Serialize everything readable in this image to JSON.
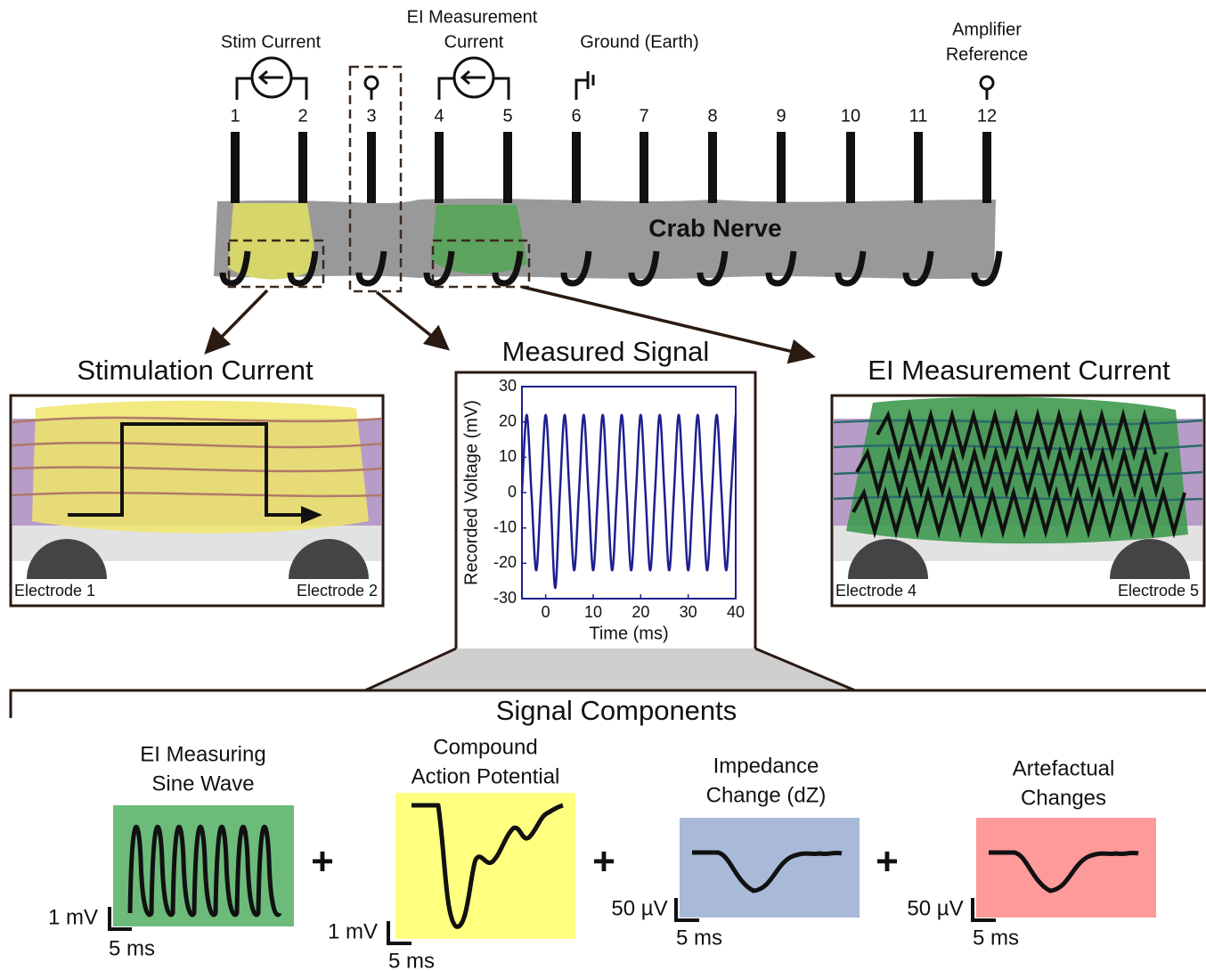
{
  "setup": {
    "source_labels": {
      "stim": "Stim Current",
      "ei": [
        "EI Measurement",
        "Current"
      ],
      "ground": "Ground (Earth)",
      "reference": [
        "Amplifier",
        "Reference"
      ]
    },
    "electrodes": [
      1,
      2,
      3,
      4,
      5,
      6,
      7,
      8,
      9,
      10,
      11,
      12
    ],
    "nerve_label": "Crab Nerve"
  },
  "panels": {
    "stimulation": {
      "title": "Stimulation Current",
      "left_electrode": "Electrode 1",
      "right_electrode": "Electrode 2"
    },
    "ei_measurement": {
      "title": "EI Measurement Current",
      "left_electrode": "Electrode 4",
      "right_electrode": "Electrode 5"
    }
  },
  "measured_signal": {
    "type": "line",
    "title": "Measured Signal",
    "x_label": "Time (ms)",
    "y_label": "Recorded Voltage (mV)",
    "color": "#1f1f8f",
    "xlim": [
      -5,
      40
    ],
    "ylim": [
      -30,
      30
    ],
    "xticks": [
      0,
      10,
      20,
      30,
      40
    ],
    "yticks": [
      -30,
      -20,
      -10,
      0,
      10,
      20,
      30
    ],
    "x": [
      -5,
      -4,
      -3,
      -2,
      -1,
      0,
      1,
      2,
      3,
      4,
      5,
      6,
      7,
      8,
      9,
      10,
      11,
      12,
      13,
      14,
      15,
      16,
      17,
      18,
      19,
      20,
      21,
      22,
      23,
      24,
      25,
      26,
      27,
      28,
      29,
      30,
      31,
      32,
      33,
      34,
      35,
      36,
      37,
      38,
      39,
      40
    ],
    "values": [
      0,
      22,
      0,
      -22,
      0,
      22,
      0,
      -27,
      0,
      22,
      0,
      -22,
      0,
      22,
      0,
      -22,
      0,
      22,
      0,
      -22,
      0,
      22,
      0,
      -22,
      0,
      22,
      0,
      -22,
      0,
      22,
      0,
      -22,
      0,
      22,
      0,
      -22,
      0,
      22,
      0,
      -22,
      0,
      22,
      0,
      -22,
      0,
      22
    ]
  },
  "components": {
    "title": "Signal Components",
    "operators": [
      "+",
      "+",
      "+"
    ],
    "items": [
      {
        "label": [
          "EI Measuring",
          "Sine Wave"
        ],
        "v_scale": "1 mV",
        "t_scale": "5 ms"
      },
      {
        "label": [
          "Compound",
          "Action Potential"
        ],
        "v_scale": "1 mV",
        "t_scale": "5 ms"
      },
      {
        "label": [
          "Impedance",
          "Change (dZ)"
        ],
        "v_scale": "50 µV",
        "t_scale": "5 ms"
      },
      {
        "label": [
          "Artefactual",
          "Changes"
        ],
        "v_scale": "50 µV",
        "t_scale": "5 ms"
      }
    ]
  }
}
